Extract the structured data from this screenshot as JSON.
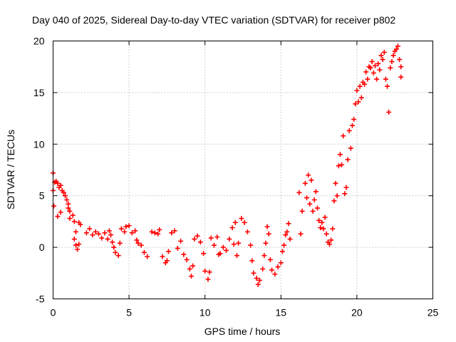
{
  "chart_data": {
    "type": "scatter",
    "title": "Day 040 of 2025, Sidereal Day-to-day VTEC variation (SDTVAR) for receiver p802",
    "xlabel": "GPS time / hours",
    "ylabel": "SDTVAR / TECUs",
    "xlim": [
      0,
      25
    ],
    "ylim": [
      -5,
      20
    ],
    "xticks": [
      {
        "value": 0,
        "label": "0"
      },
      {
        "value": 5,
        "label": "5"
      },
      {
        "value": 10,
        "label": "10"
      },
      {
        "value": 15,
        "label": "15"
      },
      {
        "value": 20,
        "label": "20"
      },
      {
        "value": 25,
        "label": "25"
      }
    ],
    "yticks": [
      {
        "value": -5,
        "label": "-5"
      },
      {
        "value": 0,
        "label": "0"
      },
      {
        "value": 5,
        "label": "5"
      },
      {
        "value": 10,
        "label": "10"
      },
      {
        "value": 15,
        "label": "15"
      },
      {
        "value": 20,
        "label": "20"
      }
    ],
    "grid": true,
    "marker": "+",
    "series": [
      {
        "name": "SDTVAR",
        "color": "#ff0000",
        "points": [
          [
            0.0,
            7.2
          ],
          [
            0.0,
            5.5
          ],
          [
            0.05,
            4.0
          ],
          [
            0.1,
            6.3
          ],
          [
            0.2,
            6.4
          ],
          [
            0.3,
            6.2
          ],
          [
            0.4,
            5.8
          ],
          [
            0.5,
            6.0
          ],
          [
            0.6,
            5.5
          ],
          [
            0.7,
            5.3
          ],
          [
            0.8,
            5.0
          ],
          [
            0.9,
            4.6
          ],
          [
            1.0,
            4.2
          ],
          [
            1.1,
            3.5
          ],
          [
            1.1,
            2.8
          ],
          [
            0.5,
            3.4
          ],
          [
            0.3,
            3.0
          ],
          [
            1.0,
            3.8
          ],
          [
            1.3,
            3.1
          ],
          [
            1.4,
            2.5
          ],
          [
            1.5,
            1.5
          ],
          [
            1.4,
            0.8
          ],
          [
            1.5,
            0.2
          ],
          [
            1.6,
            -0.2
          ],
          [
            1.7,
            0.3
          ],
          [
            1.7,
            2.4
          ],
          [
            1.8,
            2.2
          ],
          [
            2.2,
            1.4
          ],
          [
            2.4,
            1.8
          ],
          [
            2.6,
            1.2
          ],
          [
            2.8,
            1.5
          ],
          [
            3.0,
            1.3
          ],
          [
            3.2,
            0.9
          ],
          [
            3.4,
            1.4
          ],
          [
            3.6,
            0.8
          ],
          [
            3.7,
            1.6
          ],
          [
            3.8,
            1.2
          ],
          [
            3.9,
            0.5
          ],
          [
            4.0,
            0.0
          ],
          [
            4.1,
            -0.5
          ],
          [
            4.3,
            -0.8
          ],
          [
            4.4,
            0.4
          ],
          [
            4.5,
            1.8
          ],
          [
            4.7,
            1.5
          ],
          [
            4.8,
            2.0
          ],
          [
            5.0,
            2.1
          ],
          [
            5.2,
            1.4
          ],
          [
            5.4,
            1.6
          ],
          [
            5.5,
            0.7
          ],
          [
            5.6,
            0.4
          ],
          [
            5.8,
            0.2
          ],
          [
            6.0,
            -0.5
          ],
          [
            6.2,
            -0.9
          ],
          [
            6.5,
            1.5
          ],
          [
            6.7,
            1.4
          ],
          [
            6.9,
            1.3
          ],
          [
            7.0,
            1.7
          ],
          [
            7.2,
            -0.9
          ],
          [
            7.4,
            -1.5
          ],
          [
            7.5,
            -1.3
          ],
          [
            7.6,
            -0.4
          ],
          [
            7.8,
            1.4
          ],
          [
            8.0,
            1.6
          ],
          [
            8.2,
            -0.1
          ],
          [
            8.4,
            0.6
          ],
          [
            8.6,
            -0.7
          ],
          [
            8.8,
            -1.2
          ],
          [
            9.0,
            -2.1
          ],
          [
            9.1,
            -2.8
          ],
          [
            9.2,
            -1.8
          ],
          [
            9.3,
            0.8
          ],
          [
            9.5,
            1.1
          ],
          [
            9.7,
            0.5
          ],
          [
            9.9,
            -0.6
          ],
          [
            10.0,
            -2.3
          ],
          [
            10.2,
            -3.1
          ],
          [
            10.3,
            -2.4
          ],
          [
            10.4,
            0.9
          ],
          [
            10.6,
            0.2
          ],
          [
            10.8,
            1.0
          ],
          [
            10.9,
            -0.7
          ],
          [
            11.0,
            -0.6
          ],
          [
            11.2,
            0.0
          ],
          [
            11.4,
            -0.3
          ],
          [
            11.6,
            0.8
          ],
          [
            11.8,
            1.9
          ],
          [
            11.9,
            0.3
          ],
          [
            12.0,
            2.4
          ],
          [
            12.1,
            -0.8
          ],
          [
            12.2,
            0.4
          ],
          [
            12.4,
            2.8
          ],
          [
            12.6,
            2.4
          ],
          [
            12.8,
            1.5
          ],
          [
            13.0,
            0.2
          ],
          [
            13.1,
            -1.3
          ],
          [
            13.2,
            -2.5
          ],
          [
            13.4,
            -3.0
          ],
          [
            13.5,
            -3.6
          ],
          [
            13.6,
            -3.2
          ],
          [
            13.8,
            -2.1
          ],
          [
            13.9,
            -0.8
          ],
          [
            14.0,
            0.4
          ],
          [
            14.1,
            2.0
          ],
          [
            14.2,
            1.3
          ],
          [
            14.3,
            -1.2
          ],
          [
            14.4,
            -2.2
          ],
          [
            14.6,
            -2.6
          ],
          [
            14.8,
            -1.9
          ],
          [
            15.0,
            -1.5
          ],
          [
            15.1,
            -0.4
          ],
          [
            15.2,
            0.2
          ],
          [
            15.3,
            1.2
          ],
          [
            15.4,
            1.5
          ],
          [
            15.5,
            2.3
          ],
          [
            15.6,
            0.8
          ],
          [
            16.2,
            5.3
          ],
          [
            16.3,
            1.3
          ],
          [
            16.4,
            3.5
          ],
          [
            16.6,
            6.2
          ],
          [
            16.7,
            4.8
          ],
          [
            16.8,
            7.0
          ],
          [
            16.9,
            4.2
          ],
          [
            17.0,
            6.5
          ],
          [
            17.1,
            3.5
          ],
          [
            17.2,
            4.6
          ],
          [
            17.3,
            5.4
          ],
          [
            17.4,
            3.8
          ],
          [
            17.5,
            2.6
          ],
          [
            17.6,
            1.9
          ],
          [
            17.7,
            2.4
          ],
          [
            17.8,
            1.8
          ],
          [
            17.9,
            2.9
          ],
          [
            18.0,
            1.3
          ],
          [
            18.1,
            0.5
          ],
          [
            18.2,
            0.3
          ],
          [
            18.3,
            0.7
          ],
          [
            18.4,
            1.8
          ],
          [
            18.5,
            4.5
          ],
          [
            18.6,
            6.2
          ],
          [
            18.7,
            5.0
          ],
          [
            18.8,
            7.9
          ],
          [
            18.9,
            9.0
          ],
          [
            19.0,
            8.0
          ],
          [
            19.1,
            10.8
          ],
          [
            19.2,
            5.2
          ],
          [
            19.3,
            5.8
          ],
          [
            19.4,
            8.5
          ],
          [
            19.5,
            11.3
          ],
          [
            19.6,
            9.6
          ],
          [
            19.7,
            11.8
          ],
          [
            19.8,
            12.4
          ],
          [
            19.9,
            13.9
          ],
          [
            20.0,
            15.2
          ],
          [
            20.1,
            14.1
          ],
          [
            20.2,
            15.6
          ],
          [
            20.3,
            14.5
          ],
          [
            20.4,
            16.0
          ],
          [
            20.5,
            15.8
          ],
          [
            20.6,
            17.0
          ],
          [
            20.7,
            16.3
          ],
          [
            20.8,
            17.5
          ],
          [
            20.9,
            17.4
          ],
          [
            21.0,
            18.0
          ],
          [
            21.1,
            16.9
          ],
          [
            21.2,
            17.6
          ],
          [
            21.3,
            16.3
          ],
          [
            21.4,
            17.8
          ],
          [
            21.5,
            17.2
          ],
          [
            21.6,
            18.6
          ],
          [
            21.7,
            18.2
          ],
          [
            21.8,
            18.9
          ],
          [
            21.9,
            16.3
          ],
          [
            22.0,
            15.6
          ],
          [
            22.1,
            13.1
          ],
          [
            22.2,
            17.4
          ],
          [
            22.3,
            18.0
          ],
          [
            22.4,
            18.6
          ],
          [
            22.5,
            19.0
          ],
          [
            22.6,
            19.2
          ],
          [
            22.7,
            19.5
          ],
          [
            22.8,
            18.2
          ],
          [
            22.9,
            17.5
          ],
          [
            22.9,
            16.5
          ]
        ]
      }
    ]
  }
}
